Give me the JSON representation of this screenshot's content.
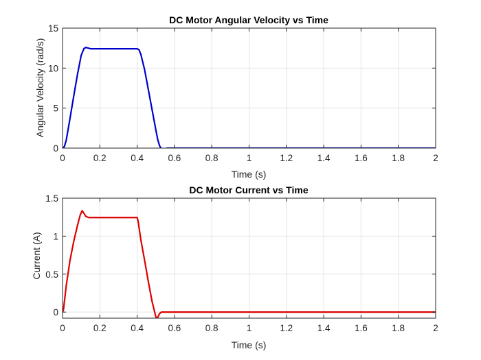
{
  "chart_data": [
    {
      "type": "line",
      "title": "DC Motor Angular Velocity vs Time",
      "xlabel": "Time (s)",
      "ylabel": "Angular Velocity (rad/s)",
      "xlim": [
        0,
        2
      ],
      "ylim": [
        0,
        15
      ],
      "xticks": [
        0,
        0.2,
        0.4,
        0.6,
        0.8,
        1,
        1.2,
        1.4,
        1.6,
        1.8,
        2
      ],
      "yticks": [
        0,
        5,
        10,
        15
      ],
      "xtick_labels": [
        "0",
        "0.2",
        "0.4",
        "0.6",
        "0.8",
        "1",
        "1.2",
        "1.4",
        "1.6",
        "1.8",
        "2"
      ],
      "ytick_labels": [
        "0",
        "5",
        "10",
        "15"
      ],
      "grid": true,
      "series": [
        {
          "color": "#0000cc",
          "x": [
            0,
            0.01,
            0.02,
            0.04,
            0.06,
            0.08,
            0.1,
            0.115,
            0.125,
            0.135,
            0.15,
            0.2,
            0.3,
            0.4,
            0.41,
            0.42,
            0.44,
            0.46,
            0.48,
            0.5,
            0.51,
            0.52,
            0.53,
            0.545,
            0.56,
            0.6,
            1,
            1.5,
            2
          ],
          "y": [
            0,
            0.2,
            1.0,
            3.7,
            6.5,
            9.2,
            11.6,
            12.45,
            12.58,
            12.52,
            12.42,
            12.42,
            12.42,
            12.42,
            12.3,
            11.7,
            9.8,
            7.3,
            4.8,
            2.3,
            1.1,
            0.3,
            -0.1,
            -0.15,
            0,
            0,
            0,
            0,
            0
          ]
        }
      ]
    },
    {
      "type": "line",
      "title": "DC Motor Current vs Time",
      "xlabel": "Time (s)",
      "ylabel": "Current (A)",
      "xlim": [
        0,
        2
      ],
      "ylim": [
        -0.08,
        1.5
      ],
      "xticks": [
        0,
        0.2,
        0.4,
        0.6,
        0.8,
        1,
        1.2,
        1.4,
        1.6,
        1.8,
        2
      ],
      "yticks": [
        0,
        0.5,
        1,
        1.5
      ],
      "xtick_labels": [
        "0",
        "0.2",
        "0.4",
        "0.6",
        "0.8",
        "1",
        "1.2",
        "1.4",
        "1.6",
        "1.8",
        "2"
      ],
      "ytick_labels": [
        "0",
        "0.5",
        "1",
        "1.5"
      ],
      "grid": true,
      "series": [
        {
          "color": "#dd0000",
          "x": [
            0,
            0.005,
            0.02,
            0.04,
            0.06,
            0.08,
            0.095,
            0.105,
            0.115,
            0.125,
            0.14,
            0.16,
            0.2,
            0.3,
            0.4,
            0.405,
            0.42,
            0.44,
            0.46,
            0.48,
            0.5,
            0.505,
            0.51,
            0.52,
            0.53,
            0.55,
            0.6,
            1,
            1.5,
            2
          ],
          "y": [
            0,
            0.03,
            0.35,
            0.68,
            0.93,
            1.14,
            1.28,
            1.335,
            1.3,
            1.26,
            1.245,
            1.245,
            1.245,
            1.245,
            1.245,
            1.2,
            0.95,
            0.68,
            0.4,
            0.14,
            -0.06,
            -0.085,
            -0.07,
            -0.02,
            0,
            0,
            0,
            0,
            0,
            0
          ]
        }
      ]
    }
  ]
}
